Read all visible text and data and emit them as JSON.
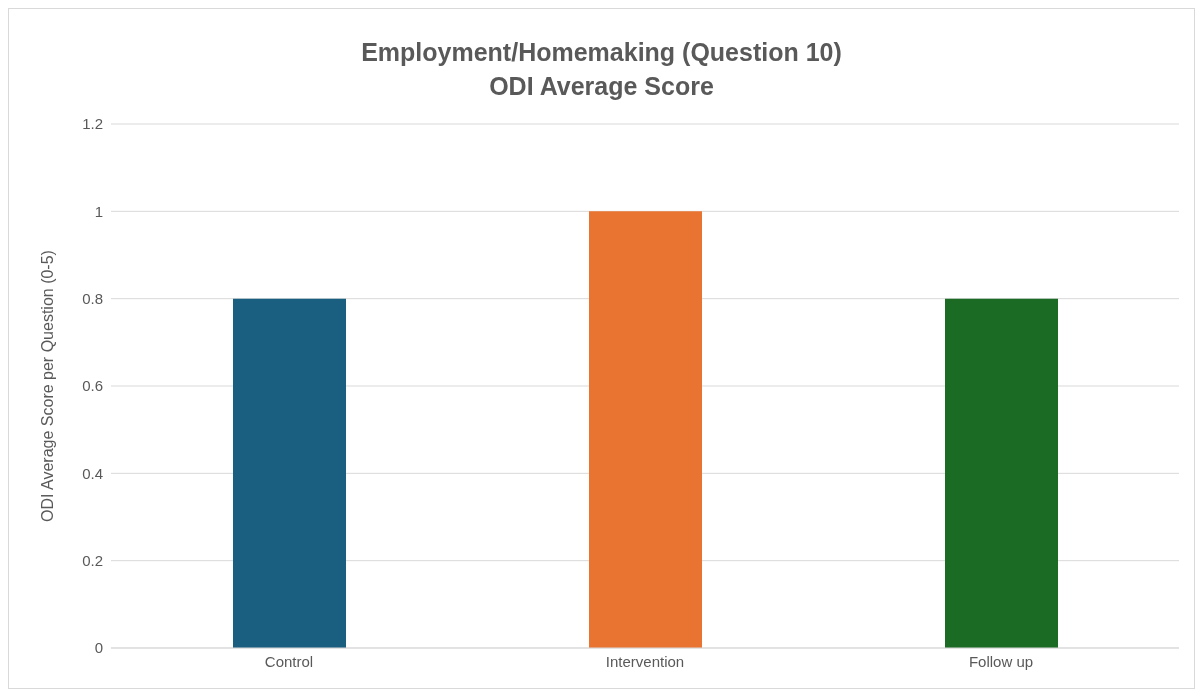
{
  "chart_data": {
    "type": "bar",
    "title": "Employment/Homemaking (Question 10)",
    "subtitle": "ODI Average Score",
    "ylabel": "ODI Average Score per Question (0-5)",
    "categories": [
      "Control",
      "Intervention",
      "Follow up"
    ],
    "values": [
      0.8,
      1,
      0.8
    ],
    "colors": [
      "#1a5f80",
      "#e97432",
      "#1b6b24"
    ],
    "ylim": [
      0,
      1.2
    ],
    "yticks": [
      0,
      0.2,
      0.4,
      0.6,
      0.8,
      1,
      1.2
    ],
    "grid": "y"
  }
}
